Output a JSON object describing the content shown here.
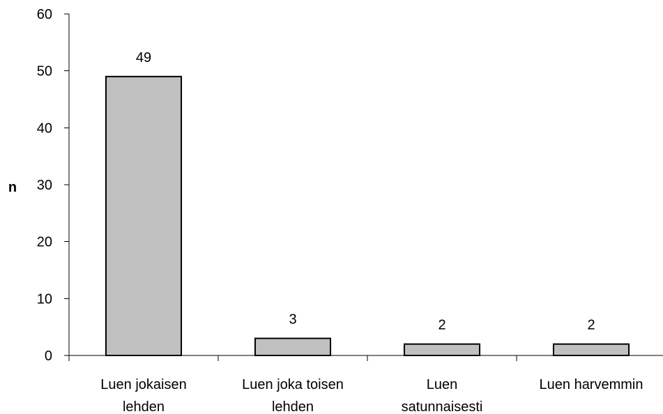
{
  "chart_data": {
    "type": "bar",
    "title": "",
    "xlabel": "",
    "ylabel": "n",
    "categories": [
      [
        "Luen jokaisen",
        "lehden"
      ],
      [
        "Luen joka toisen",
        "lehden"
      ],
      [
        "Luen",
        "satunnaisesti"
      ],
      [
        "Luen harvemmin"
      ]
    ],
    "values": [
      49,
      3,
      2,
      2
    ],
    "data_labels": [
      "49",
      "3",
      "2",
      "2"
    ],
    "ylim": [
      0,
      60
    ],
    "yticks": [
      0,
      10,
      20,
      30,
      40,
      50,
      60
    ],
    "grid": false,
    "legend": "none",
    "colors": {
      "bar_fill": "#c0c0c0",
      "bar_stroke": "#000000",
      "axis": "#000000"
    }
  }
}
